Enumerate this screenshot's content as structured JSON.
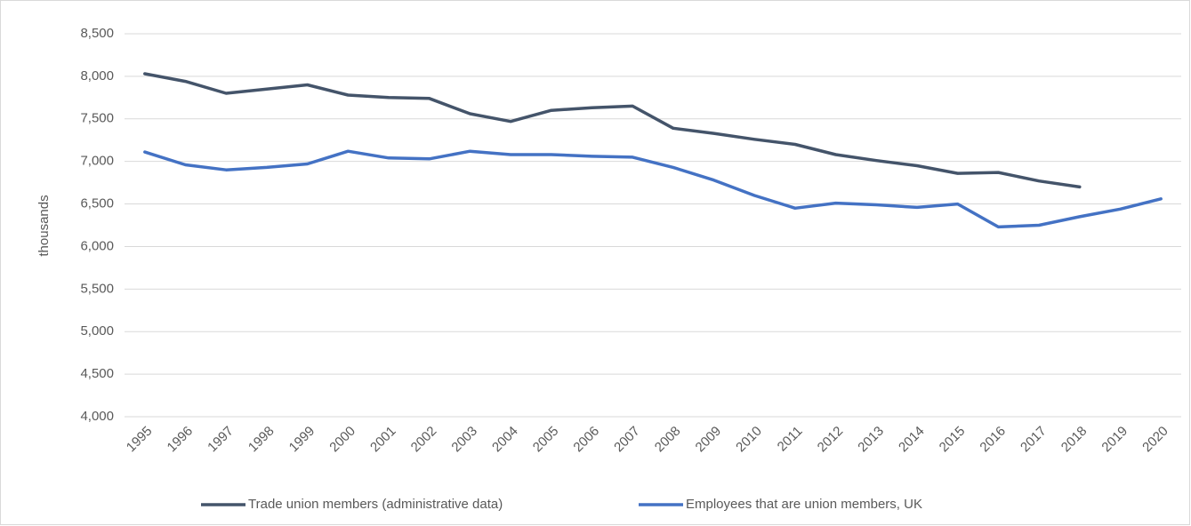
{
  "chart_data": {
    "type": "line",
    "y_axis_label": "thousands",
    "categories": [
      "1995",
      "1996",
      "1997",
      "1998",
      "1999",
      "2000",
      "2001",
      "2002",
      "2003",
      "2004",
      "2005",
      "2006",
      "2007",
      "2008",
      "2009",
      "2010",
      "2011",
      "2012",
      "2013",
      "2014",
      "2015",
      "2016",
      "2017",
      "2018",
      "2019",
      "2020"
    ],
    "series": [
      {
        "name": "Trade union members (administrative data)",
        "color": "#44546a",
        "values": [
          8030,
          7940,
          7800,
          7850,
          7900,
          7780,
          7750,
          7740,
          7560,
          7470,
          7600,
          7630,
          7650,
          7390,
          7330,
          7260,
          7200,
          7080,
          7010,
          6950,
          6860,
          6870,
          6770,
          6700,
          null,
          null
        ]
      },
      {
        "name": "Employees that are union members, UK",
        "color": "#4472c4",
        "values": [
          7110,
          6960,
          6900,
          6930,
          6970,
          7120,
          7040,
          7030,
          7120,
          7080,
          7080,
          7060,
          7050,
          6930,
          6780,
          6600,
          6450,
          6510,
          6490,
          6460,
          6500,
          6230,
          6250,
          6350,
          6440,
          6560
        ]
      }
    ],
    "ylim": [
      4000,
      8500
    ],
    "yticks": [
      {
        "value": 4000,
        "label": "4,000"
      },
      {
        "value": 4500,
        "label": "4,500"
      },
      {
        "value": 5000,
        "label": "5,000"
      },
      {
        "value": 5500,
        "label": "5,500"
      },
      {
        "value": 6000,
        "label": "6,000"
      },
      {
        "value": 6500,
        "label": "6,500"
      },
      {
        "value": 7000,
        "label": "7,000"
      },
      {
        "value": 7500,
        "label": "7,500"
      },
      {
        "value": 8000,
        "label": "8,000"
      },
      {
        "value": 8500,
        "label": "8,500"
      }
    ],
    "grid": true,
    "legend": "bottom"
  }
}
